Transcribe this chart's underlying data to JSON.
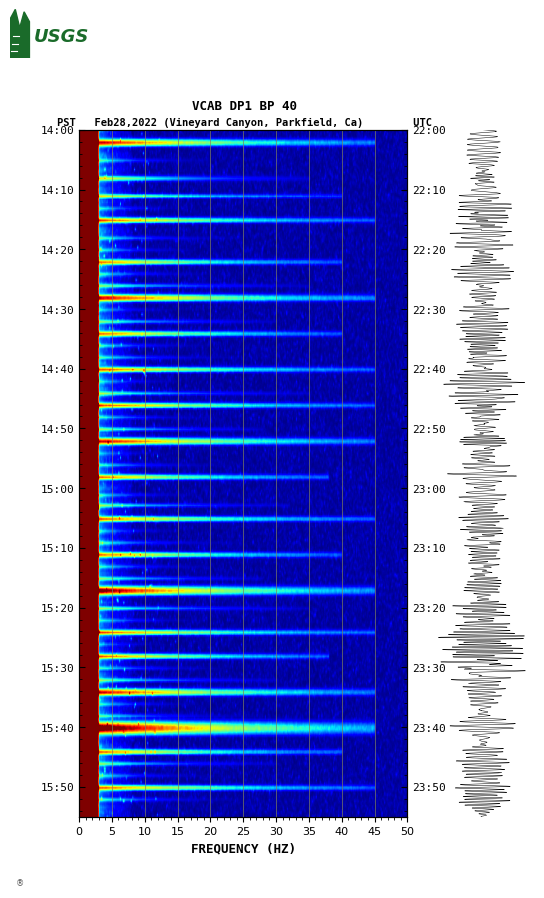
{
  "title_line1": "VCAB DP1 BP 40",
  "title_line2": "PST   Feb28,2022 (Vineyard Canyon, Parkfield, Ca)        UTC",
  "xlabel": "FREQUENCY (HZ)",
  "freq_min": 0,
  "freq_max": 50,
  "left_yticks": [
    "14:00",
    "14:10",
    "14:20",
    "14:30",
    "14:40",
    "14:50",
    "15:00",
    "15:10",
    "15:20",
    "15:30",
    "15:40",
    "15:50"
  ],
  "right_yticks": [
    "22:00",
    "22:10",
    "22:20",
    "22:30",
    "22:40",
    "22:50",
    "23:00",
    "23:10",
    "23:20",
    "23:30",
    "23:40",
    "23:50"
  ],
  "xticks": [
    0,
    5,
    10,
    15,
    20,
    25,
    30,
    35,
    40,
    45,
    50
  ],
  "vgrid_freqs": [
    5,
    10,
    15,
    20,
    25,
    30,
    35,
    40,
    45
  ],
  "background_color": "#ffffff",
  "colormap": "jet",
  "fig_width": 5.52,
  "fig_height": 8.92,
  "font_family": "monospace",
  "total_minutes": 115,
  "n_time_rows": 460,
  "n_freq_bins": 400,
  "usgs_green": "#1a6b2a",
  "grid_color": "#808060",
  "tick_label_fontsize": 8,
  "axis_label_fontsize": 9
}
